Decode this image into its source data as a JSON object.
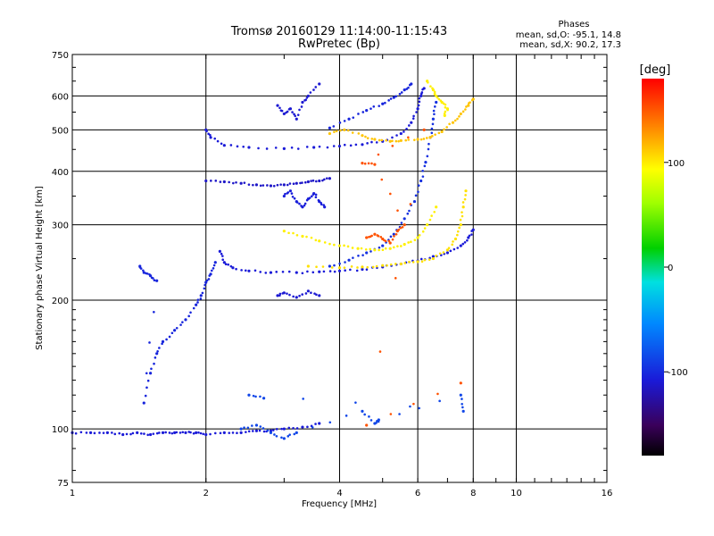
{
  "chart_data": {
    "type": "scatter",
    "title": "Tromsø 20160129 11:14:00-11:15:43",
    "subtitle": "RwPretec (Bp)",
    "xlabel": "Frequency [MHz]",
    "ylabel": "Stationary phase Virtual Height [km]",
    "x_scale": "log",
    "y_scale": "log",
    "xlim": [
      1,
      16
    ],
    "ylim": [
      75,
      750
    ],
    "x_ticks": [
      {
        "value": 1,
        "label": "1"
      },
      {
        "value": 2,
        "label": "2"
      },
      {
        "value": 4,
        "label": "4"
      },
      {
        "value": 6,
        "label": "6"
      },
      {
        "value": 8,
        "label": "8"
      },
      {
        "value": 10,
        "label": "10"
      },
      {
        "value": 16,
        "label": "16"
      }
    ],
    "y_ticks": [
      {
        "value": 75,
        "label": "75"
      },
      {
        "value": 100,
        "label": "100"
      },
      {
        "value": 200,
        "label": "200"
      },
      {
        "value": 300,
        "label": "300"
      },
      {
        "value": 400,
        "label": "400"
      },
      {
        "value": 500,
        "label": "500"
      },
      {
        "value": 600,
        "label": "600"
      },
      {
        "value": 750,
        "label": "750"
      }
    ],
    "grid": true,
    "legend": {
      "title": "Phases",
      "line1": "mean, sd,O: -95.1, 14.8",
      "line2": "mean, sd,X: 90.2, 17.3",
      "placement": "top-right"
    },
    "colorbar": {
      "label": "[deg]",
      "min": -180,
      "max": 180,
      "ticks": [
        {
          "value": 100,
          "label": "100"
        },
        {
          "value": 0,
          "label": "0"
        },
        {
          "value": -100,
          "label": "-100"
        }
      ]
    },
    "series": [
      {
        "phase": -110,
        "points": [
          [
            1.0,
            98
          ],
          [
            1.1,
            98
          ],
          [
            1.2,
            98
          ],
          [
            1.3,
            97
          ],
          [
            1.4,
            98
          ],
          [
            1.5,
            97
          ],
          [
            1.6,
            98
          ],
          [
            1.7,
            98
          ],
          [
            1.8,
            98
          ],
          [
            1.9,
            98
          ],
          [
            2.0,
            97
          ],
          [
            2.2,
            98
          ],
          [
            2.4,
            98
          ],
          [
            2.6,
            99
          ],
          [
            2.8,
            99
          ],
          [
            3.0,
            100
          ],
          [
            3.3,
            101
          ],
          [
            3.6,
            103
          ]
        ]
      },
      {
        "phase": -105,
        "points": [
          [
            1.42,
            240
          ],
          [
            1.45,
            232
          ],
          [
            1.5,
            228
          ],
          [
            1.55,
            222
          ],
          [
            1.45,
            115
          ],
          [
            1.5,
            135
          ],
          [
            1.55,
            150
          ],
          [
            1.6,
            160
          ],
          [
            1.7,
            170
          ],
          [
            1.8,
            180
          ],
          [
            1.9,
            195
          ],
          [
            1.95,
            205
          ],
          [
            2.0,
            220
          ],
          [
            2.05,
            230
          ],
          [
            2.1,
            245
          ]
        ]
      },
      {
        "phase": -110,
        "points": [
          [
            2.15,
            260
          ],
          [
            2.2,
            245
          ],
          [
            2.3,
            238
          ],
          [
            2.5,
            234
          ],
          [
            2.8,
            232
          ],
          [
            3.2,
            232
          ],
          [
            3.6,
            233
          ],
          [
            4.0,
            234
          ],
          [
            4.5,
            236
          ],
          [
            5.0,
            239
          ],
          [
            5.5,
            243
          ],
          [
            6.0,
            247
          ],
          [
            6.5,
            253
          ],
          [
            7.0,
            258
          ],
          [
            7.5,
            268
          ],
          [
            7.8,
            280
          ],
          [
            8.0,
            292
          ]
        ]
      },
      {
        "phase": -100,
        "points": [
          [
            3.8,
            240
          ],
          [
            4.2,
            248
          ],
          [
            4.6,
            258
          ],
          [
            5.0,
            268
          ],
          [
            5.3,
            285
          ],
          [
            5.6,
            310
          ],
          [
            5.9,
            340
          ],
          [
            6.1,
            380
          ],
          [
            6.25,
            420
          ],
          [
            6.4,
            480
          ],
          [
            6.5,
            530
          ],
          [
            6.6,
            580
          ]
        ]
      },
      {
        "phase": -110,
        "points": [
          [
            2.0,
            500
          ],
          [
            2.05,
            480
          ],
          [
            2.2,
            460
          ],
          [
            2.5,
            455
          ],
          [
            3.0,
            452
          ],
          [
            3.5,
            455
          ],
          [
            4.0,
            458
          ],
          [
            4.5,
            462
          ],
          [
            5.0,
            470
          ],
          [
            5.5,
            490
          ],
          [
            5.8,
            520
          ],
          [
            6.0,
            560
          ],
          [
            6.1,
            600
          ],
          [
            6.2,
            625
          ]
        ]
      },
      {
        "phase": -105,
        "points": [
          [
            3.8,
            505
          ],
          [
            4.2,
            530
          ],
          [
            4.6,
            555
          ],
          [
            5.0,
            575
          ],
          [
            5.3,
            595
          ],
          [
            5.6,
            620
          ],
          [
            5.8,
            640
          ]
        ]
      },
      {
        "phase": -115,
        "points": [
          [
            2.0,
            380
          ],
          [
            2.2,
            378
          ],
          [
            2.4,
            375
          ],
          [
            2.6,
            372
          ],
          [
            2.8,
            370
          ],
          [
            3.0,
            372
          ],
          [
            3.2,
            375
          ],
          [
            3.4,
            378
          ],
          [
            3.6,
            380
          ],
          [
            3.8,
            385
          ]
        ]
      },
      {
        "phase": -108,
        "points": [
          [
            3.0,
            350
          ],
          [
            3.1,
            360
          ],
          [
            3.2,
            340
          ],
          [
            3.3,
            330
          ],
          [
            3.4,
            345
          ],
          [
            3.5,
            355
          ],
          [
            3.6,
            340
          ],
          [
            3.7,
            330
          ]
        ]
      },
      {
        "phase": -112,
        "points": [
          [
            2.9,
            570
          ],
          [
            3.0,
            545
          ],
          [
            3.1,
            560
          ],
          [
            3.2,
            530
          ],
          [
            3.3,
            580
          ],
          [
            3.4,
            600
          ],
          [
            3.6,
            640
          ]
        ]
      },
      {
        "phase": -112,
        "points": [
          [
            2.9,
            205
          ],
          [
            3.0,
            208
          ],
          [
            3.2,
            203
          ],
          [
            3.4,
            210
          ],
          [
            3.6,
            205
          ]
        ]
      },
      {
        "phase": -90,
        "points": [
          [
            2.4,
            100
          ],
          [
            2.6,
            102
          ],
          [
            2.8,
            98
          ],
          [
            3.0,
            95
          ],
          [
            3.2,
            98
          ],
          [
            4.5,
            110
          ],
          [
            4.8,
            103
          ],
          [
            4.9,
            105
          ],
          [
            7.5,
            120
          ],
          [
            7.6,
            110
          ],
          [
            2.5,
            120
          ],
          [
            2.7,
            118
          ]
        ]
      },
      {
        "phase": 95,
        "points": [
          [
            3.0,
            290
          ],
          [
            3.3,
            282
          ],
          [
            3.6,
            275
          ],
          [
            4.0,
            268
          ],
          [
            4.4,
            264
          ],
          [
            4.8,
            262
          ],
          [
            5.2,
            264
          ],
          [
            5.6,
            270
          ],
          [
            6.0,
            280
          ],
          [
            6.3,
            300
          ],
          [
            6.6,
            330
          ]
        ]
      },
      {
        "phase": 100,
        "points": [
          [
            3.4,
            240
          ],
          [
            4.0,
            238
          ],
          [
            4.5,
            239
          ],
          [
            5.0,
            241
          ],
          [
            5.5,
            243
          ],
          [
            6.0,
            246
          ],
          [
            6.5,
            250
          ],
          [
            7.0,
            262
          ],
          [
            7.3,
            278
          ],
          [
            7.5,
            300
          ],
          [
            7.6,
            330
          ],
          [
            7.7,
            360
          ]
        ]
      },
      {
        "phase": 110,
        "points": [
          [
            3.8,
            490
          ],
          [
            4.1,
            500
          ],
          [
            4.5,
            485
          ],
          [
            4.8,
            475
          ],
          [
            5.2,
            470
          ],
          [
            5.5,
            472
          ],
          [
            6.0,
            475
          ],
          [
            6.4,
            480
          ],
          [
            6.8,
            495
          ],
          [
            7.2,
            520
          ],
          [
            7.5,
            545
          ],
          [
            7.8,
            570
          ],
          [
            8.0,
            590
          ]
        ]
      },
      {
        "phase": 95,
        "points": [
          [
            6.3,
            650
          ],
          [
            6.5,
            620
          ],
          [
            6.6,
            600
          ],
          [
            6.8,
            580
          ],
          [
            7.0,
            560
          ],
          [
            6.9,
            540
          ]
        ]
      },
      {
        "phase": 150,
        "points": [
          [
            4.6,
            280
          ],
          [
            4.8,
            285
          ],
          [
            5.0,
            278
          ],
          [
            5.2,
            272
          ],
          [
            5.4,
            290
          ],
          [
            5.6,
            300
          ],
          [
            4.8,
            415
          ],
          [
            4.5,
            418
          ],
          [
            6.2,
            500
          ],
          [
            4.6,
            102
          ],
          [
            7.5,
            128
          ]
        ]
      }
    ]
  }
}
